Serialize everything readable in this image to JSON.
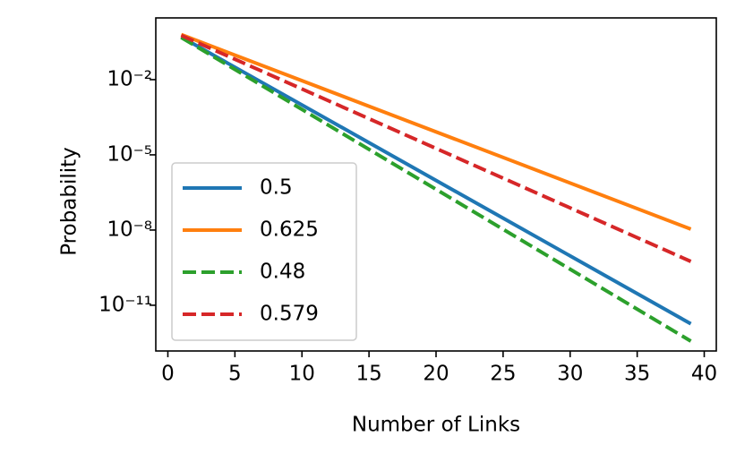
{
  "chart_data": {
    "type": "line",
    "xlabel": "Number of Links",
    "ylabel": "Probability",
    "x": [
      1,
      39
    ],
    "series": [
      {
        "name": "0.5",
        "color": "#1f77b4",
        "linestyle": "solid",
        "values": [
          0.5,
          1.82e-12
        ]
      },
      {
        "name": "0.625",
        "color": "#ff7f0e",
        "linestyle": "solid",
        "values": [
          0.625,
          1.09e-08
        ]
      },
      {
        "name": "0.48",
        "color": "#2ca02c",
        "linestyle": "dashed",
        "values": [
          0.48,
          3.7e-13
        ]
      },
      {
        "name": "0.579",
        "color": "#d62728",
        "linestyle": "dashed",
        "values": [
          0.579,
          5.6e-10
        ]
      }
    ],
    "xlim": [
      -0.9,
      40.9
    ],
    "xticks": [
      0,
      5,
      10,
      15,
      20,
      25,
      30,
      35,
      40
    ],
    "yscale": "log",
    "ylim": [
      1.5e-13,
      2.9
    ],
    "yticks": [
      {
        "value": 0.01,
        "label": "10⁻²"
      },
      {
        "value": 1e-05,
        "label": "10⁻⁵"
      },
      {
        "value": 1e-08,
        "label": "10⁻⁸"
      },
      {
        "value": 1e-11,
        "label": "10⁻¹¹"
      }
    ],
    "legend": "lower left"
  }
}
